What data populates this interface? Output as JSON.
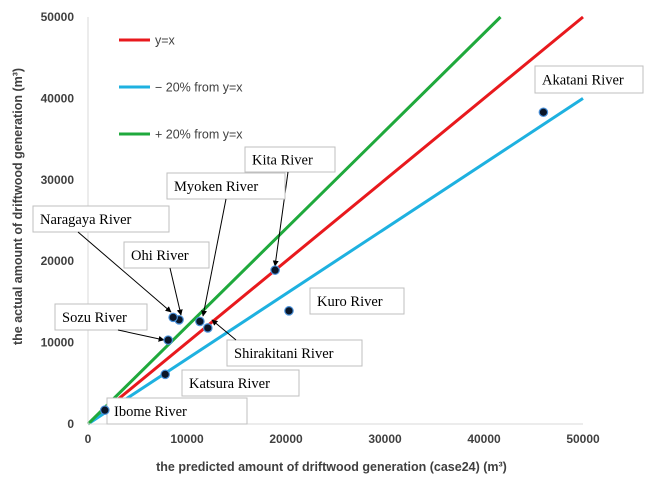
{
  "chart_data": {
    "type": "scatter",
    "title": "",
    "xlabel": "the predicted amount of driftwood generation (case24) (m³)",
    "ylabel": "the actual amount of driftwood generation (m³)",
    "xlim": [
      0,
      50000
    ],
    "ylim": [
      0,
      50000
    ],
    "x_ticks": [
      "0",
      "10000",
      "20000",
      "30000",
      "40000",
      "50000"
    ],
    "y_ticks": [
      "0",
      "10000",
      "20000",
      "30000",
      "40000",
      "50000"
    ],
    "grid": false,
    "legend_position": "top-left",
    "reference_lines": [
      {
        "name": "y=x",
        "slope": 1.0,
        "color": "#e8191d"
      },
      {
        "name": "− 20% from y=x",
        "slope": 0.8,
        "color": "#1eb1e0"
      },
      {
        "name": "+ 20% from y=x",
        "slope": 1.2,
        "color": "#1fa93c"
      }
    ],
    "points": [
      {
        "label": "Akatani River",
        "x": 46000,
        "y": 38300
      },
      {
        "label": "Kita River",
        "x": 18900,
        "y": 18900
      },
      {
        "label": "Kuro River",
        "x": 20300,
        "y": 13900
      },
      {
        "label": "Myoken River",
        "x": 11300,
        "y": 12600
      },
      {
        "label": "Shirakitani River",
        "x": 12100,
        "y": 11800
      },
      {
        "label": "Ohi River",
        "x": 9200,
        "y": 12800
      },
      {
        "label": "Naragaya River",
        "x": 8600,
        "y": 13100
      },
      {
        "label": "Sozu River",
        "x": 8100,
        "y": 10300
      },
      {
        "label": "Katsura River",
        "x": 7800,
        "y": 6100
      },
      {
        "label": "Ibome River",
        "x": 1700,
        "y": 1700
      }
    ]
  }
}
